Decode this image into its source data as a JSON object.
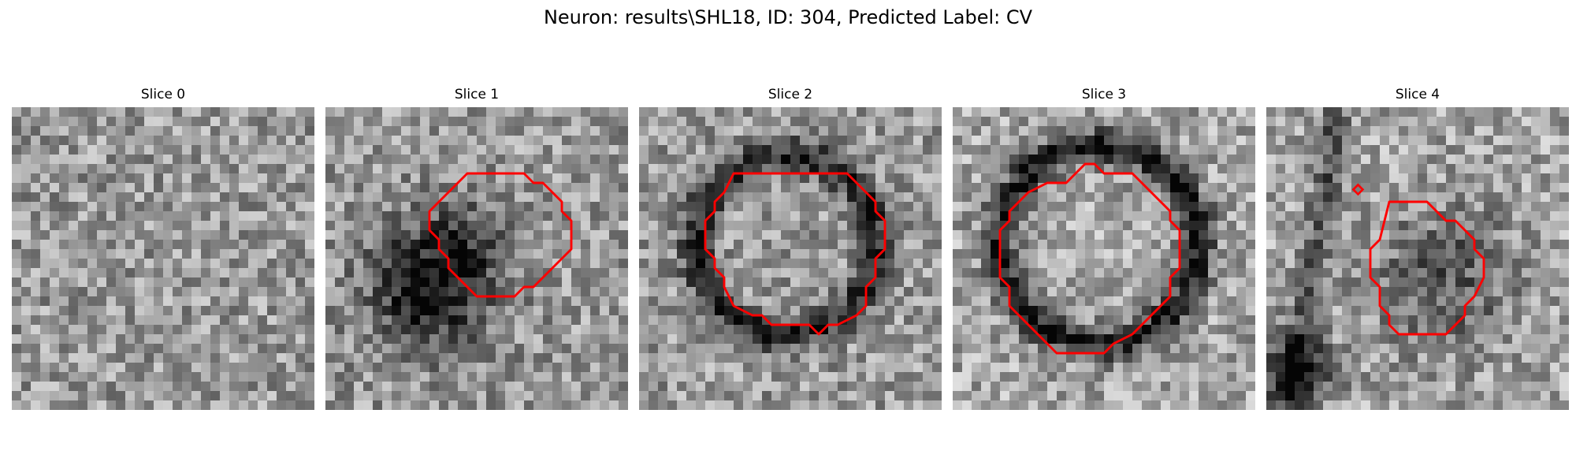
{
  "figure": {
    "title": "Neuron: results\\SHL18, ID: 304, Predicted Label: CV"
  },
  "panels": [
    {
      "title": "Slice 0",
      "contour": false
    },
    {
      "title": "Slice 1",
      "contour": true
    },
    {
      "title": "Slice 2",
      "contour": true
    },
    {
      "title": "Slice 3",
      "contour": true
    },
    {
      "title": "Slice 4",
      "contour": true
    }
  ],
  "colors": {
    "contour": "#ff0000"
  }
}
